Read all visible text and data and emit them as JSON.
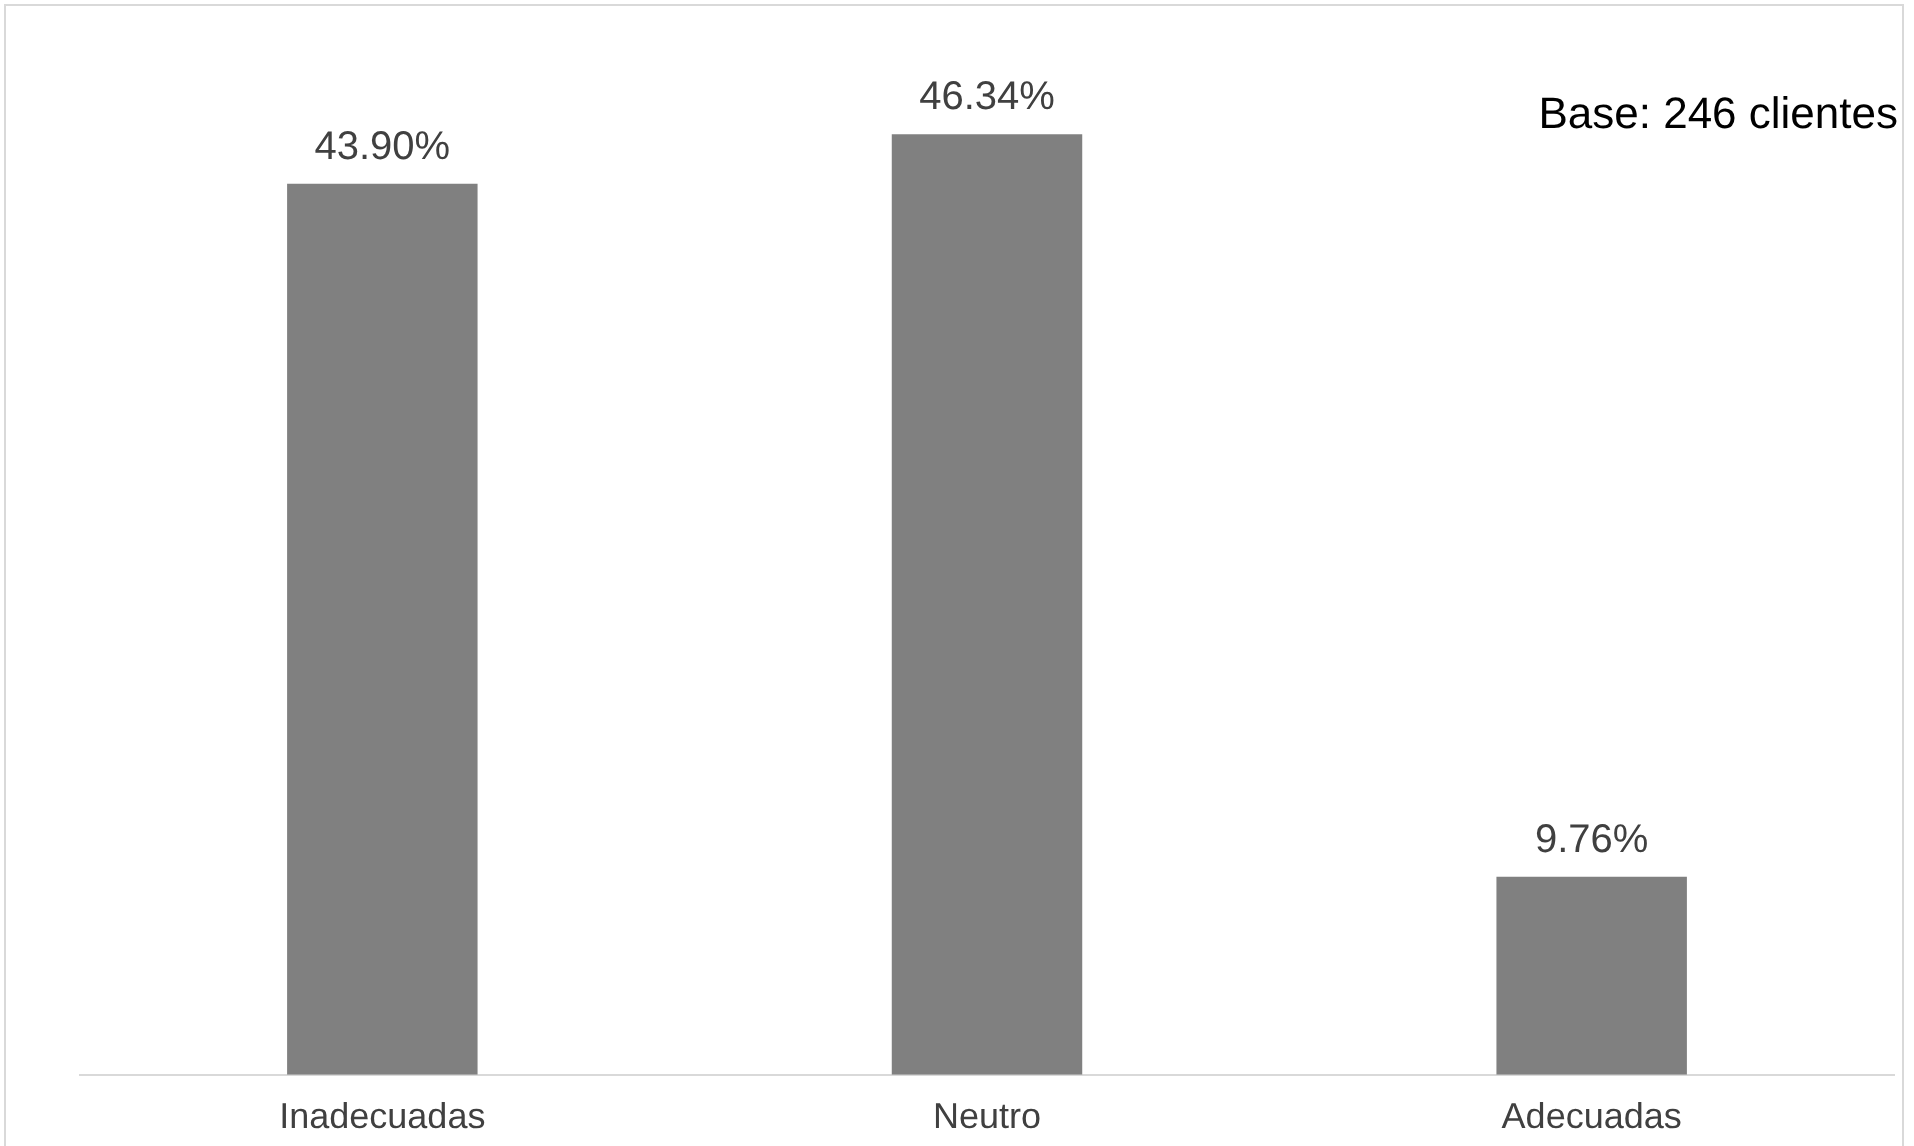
{
  "chart_data": {
    "type": "bar",
    "categories": [
      "Inadecuadas",
      "Neutro",
      "Adecuadas"
    ],
    "series": [
      {
        "color": "#808080",
        "values": [
          43.9,
          46.34,
          9.76
        ],
        "value_labels": [
          "43.90%",
          "46.34%",
          "9.76%"
        ]
      }
    ],
    "annotations": [
      "Base: 246 clientes"
    ],
    "grid": false,
    "legend": false
  }
}
